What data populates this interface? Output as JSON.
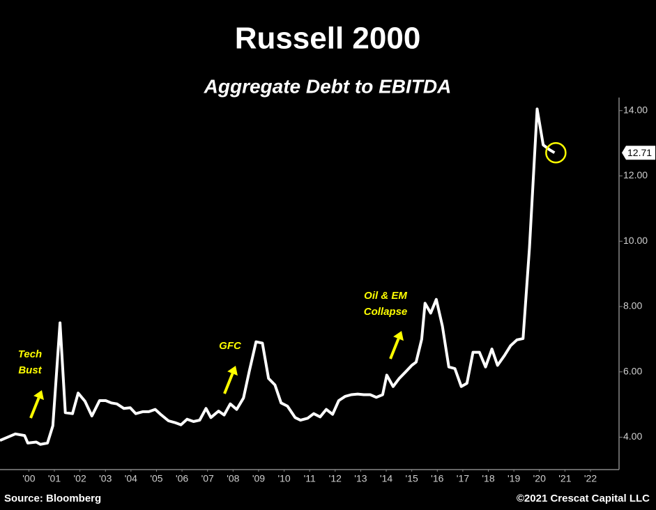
{
  "chart_data": {
    "type": "line",
    "title": "Russell 2000",
    "subtitle": "Aggregate Debt to EBITDA",
    "x": [
      1999.37,
      1999.97,
      2000.33,
      2000.46,
      2000.79,
      2000.95,
      2001.23,
      2001.44,
      2001.72,
      2001.93,
      2002.21,
      2002.43,
      2002.7,
      2002.97,
      2003.27,
      2003.51,
      2003.73,
      2003.95,
      2004.22,
      2004.47,
      2004.69,
      2004.96,
      2005.2,
      2005.45,
      2005.69,
      2005.97,
      2006.21,
      2006.46,
      2006.7,
      2006.95,
      2007.19,
      2007.44,
      2007.63,
      2007.93,
      2008.15,
      2008.39,
      2008.64,
      2008.91,
      2009.13,
      2009.4,
      2009.65,
      2009.89,
      2010.14,
      2010.38,
      2010.63,
      2010.93,
      2011.14,
      2011.42,
      2011.66,
      2011.91,
      2012.15,
      2012.4,
      2012.64,
      2012.89,
      2013.13,
      2013.38,
      2013.62,
      2013.87,
      2014.11,
      2014.36,
      2014.52,
      2014.77,
      2015.01,
      2015.26,
      2015.5,
      2015.67,
      2015.89,
      2016.02,
      2016.24,
      2016.46,
      2016.7,
      2016.95,
      2017.19,
      2017.44,
      2017.66,
      2017.9,
      2018.15,
      2018.39,
      2018.64,
      2018.86,
      2019.13,
      2019.37,
      2019.62,
      2019.86,
      2020.11,
      2020.41,
      2020.65,
      2020.9,
      2021.09
    ],
    "values": [
      3.9,
      4.1,
      4.05,
      3.82,
      3.85,
      3.78,
      3.82,
      4.35,
      7.5,
      4.75,
      4.72,
      5.35,
      5.1,
      4.65,
      5.12,
      5.12,
      5.05,
      5.02,
      4.88,
      4.9,
      4.72,
      4.78,
      4.78,
      4.85,
      4.68,
      4.5,
      4.45,
      4.38,
      4.55,
      4.48,
      4.52,
      4.88,
      4.6,
      4.8,
      4.68,
      5.02,
      4.85,
      5.2,
      6.0,
      6.92,
      6.88,
      5.8,
      5.6,
      5.05,
      4.95,
      4.6,
      4.52,
      4.58,
      4.72,
      4.62,
      4.85,
      4.7,
      5.12,
      5.25,
      5.3,
      5.32,
      5.3,
      5.3,
      5.22,
      5.3,
      5.9,
      5.55,
      5.8,
      6.0,
      6.2,
      6.3,
      7.0,
      8.1,
      7.8,
      8.22,
      7.4,
      6.15,
      6.1,
      5.55,
      5.65,
      6.6,
      6.6,
      6.15,
      6.7,
      6.2,
      6.5,
      6.8,
      6.98,
      7.02,
      9.8,
      14.05,
      12.95,
      12.8,
      12.71
    ],
    "color": "#ffffff",
    "xlim": [
      1999.37,
      2023.62
    ],
    "xticks": [
      {
        "value": 2000.5,
        "label": "'00"
      },
      {
        "value": 2001.5,
        "label": "'01"
      },
      {
        "value": 2002.5,
        "label": "'02"
      },
      {
        "value": 2003.5,
        "label": "'03"
      },
      {
        "value": 2004.5,
        "label": "'04"
      },
      {
        "value": 2005.5,
        "label": "'05"
      },
      {
        "value": 2006.5,
        "label": "'06"
      },
      {
        "value": 2007.5,
        "label": "'07"
      },
      {
        "value": 2008.5,
        "label": "'08"
      },
      {
        "value": 2009.5,
        "label": "'09"
      },
      {
        "value": 2010.5,
        "label": "'10"
      },
      {
        "value": 2011.5,
        "label": "'11"
      },
      {
        "value": 2012.5,
        "label": "'12"
      },
      {
        "value": 2013.5,
        "label": "'13"
      },
      {
        "value": 2014.5,
        "label": "'14"
      },
      {
        "value": 2015.5,
        "label": "'15"
      },
      {
        "value": 2016.5,
        "label": "'16"
      },
      {
        "value": 2017.5,
        "label": "'17"
      },
      {
        "value": 2018.5,
        "label": "'18"
      },
      {
        "value": 2019.5,
        "label": "'19"
      },
      {
        "value": 2020.5,
        "label": "'20"
      },
      {
        "value": 2021.5,
        "label": "'21"
      },
      {
        "value": 2022.5,
        "label": "'22"
      }
    ],
    "ylim": [
      3.05,
      14.4
    ],
    "yticks": [
      {
        "value": 4,
        "label": "4.00"
      },
      {
        "value": 6,
        "label": "6.00"
      },
      {
        "value": 8,
        "label": "8.00"
      },
      {
        "value": 10,
        "label": "10.00"
      },
      {
        "value": 12,
        "label": "12.00"
      },
      {
        "value": 14,
        "label": "14.00"
      }
    ],
    "annotations": [
      [
        "Tech",
        "Bust"
      ],
      [
        "GFC"
      ],
      [
        "Oil & EM",
        "Collapse"
      ]
    ],
    "annotation_color": "#ffff00",
    "source": "Source: Bloomberg",
    "copyright": "©2021 Crescat Capital LLC"
  }
}
